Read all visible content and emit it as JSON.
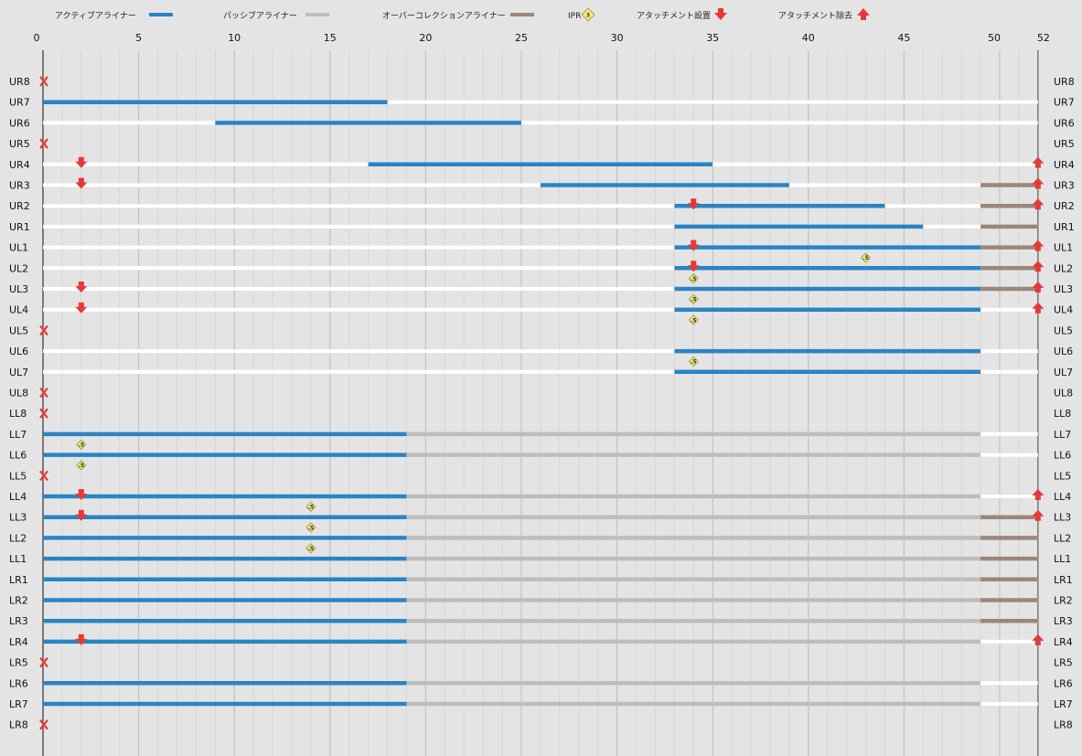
{
  "chart_data": {
    "type": "timeline",
    "x_axis": {
      "ticks": [
        0,
        5,
        10,
        15,
        20,
        25,
        30,
        35,
        40,
        45,
        50,
        52
      ],
      "max": 52
    },
    "legend": {
      "active": "アクティブアライナー",
      "passive": "パッシブアライナー",
      "overcorrection": "オーバーコレクションアライナー",
      "ipr": "IPR",
      "ipr_badge": "3",
      "attach_place": "アタッチメント設置",
      "attach_remove": "アタッチメント除去"
    },
    "colors": {
      "active": "#2a84c4",
      "passive": "#bdbdbd",
      "overcorrection": "#9a867b",
      "track": "#ffffff",
      "marker": "#e43a36",
      "ipr_fill": "#f1e97a",
      "background": "#e4e4e4"
    },
    "teeth": [
      {
        "name": "UR8",
        "missing": true
      },
      {
        "name": "UR7",
        "segments": [
          {
            "type": "active",
            "start": 0,
            "end": 18
          }
        ]
      },
      {
        "name": "UR6",
        "segments": [
          {
            "type": "active",
            "start": 9,
            "end": 25
          }
        ]
      },
      {
        "name": "UR5",
        "missing": true
      },
      {
        "name": "UR4",
        "segments": [
          {
            "type": "active",
            "start": 17,
            "end": 35
          }
        ],
        "attach_place": 2,
        "attach_remove": 52
      },
      {
        "name": "UR3",
        "segments": [
          {
            "type": "active",
            "start": 26,
            "end": 39
          },
          {
            "type": "overcorrection",
            "start": 49,
            "end": 52
          }
        ],
        "attach_place": 2,
        "attach_remove": 52
      },
      {
        "name": "UR2",
        "segments": [
          {
            "type": "active",
            "start": 33,
            "end": 44
          },
          {
            "type": "overcorrection",
            "start": 49,
            "end": 52
          }
        ],
        "attach_place": 34,
        "attach_remove": 52
      },
      {
        "name": "UR1",
        "segments": [
          {
            "type": "active",
            "start": 33,
            "end": 46
          },
          {
            "type": "overcorrection",
            "start": 49,
            "end": 52
          }
        ]
      },
      {
        "name": "UL1",
        "segments": [
          {
            "type": "active",
            "start": 33,
            "end": 49
          },
          {
            "type": "overcorrection",
            "start": 49,
            "end": 52
          }
        ],
        "attach_place": 34,
        "attach_remove": 52,
        "ipr_after": [
          {
            "x": 43,
            "label": ".5"
          }
        ]
      },
      {
        "name": "UL2",
        "segments": [
          {
            "type": "active",
            "start": 33,
            "end": 49
          },
          {
            "type": "overcorrection",
            "start": 49,
            "end": 52
          }
        ],
        "attach_place": 34,
        "attach_remove": 52,
        "ipr_after": [
          {
            "x": 34,
            "label": ".5"
          }
        ]
      },
      {
        "name": "UL3",
        "segments": [
          {
            "type": "active",
            "start": 33,
            "end": 49
          },
          {
            "type": "overcorrection",
            "start": 49,
            "end": 52
          }
        ],
        "attach_place": 2,
        "attach_remove": 52,
        "ipr_after": [
          {
            "x": 34,
            "label": ".5"
          }
        ]
      },
      {
        "name": "UL4",
        "segments": [
          {
            "type": "active",
            "start": 33,
            "end": 49
          }
        ],
        "attach_place": 2,
        "attach_remove": 52,
        "ipr_after": [
          {
            "x": 34,
            "label": ".5"
          }
        ]
      },
      {
        "name": "UL5",
        "missing": true
      },
      {
        "name": "UL6",
        "segments": [
          {
            "type": "active",
            "start": 33,
            "end": 49
          }
        ],
        "ipr_after": [
          {
            "x": 34,
            "label": ".5"
          }
        ]
      },
      {
        "name": "UL7",
        "segments": [
          {
            "type": "active",
            "start": 33,
            "end": 49
          }
        ]
      },
      {
        "name": "UL8",
        "missing": true
      },
      {
        "name": "LL8",
        "missing": true
      },
      {
        "name": "LL7",
        "segments": [
          {
            "type": "active",
            "start": 0,
            "end": 19
          },
          {
            "type": "passive",
            "start": 19,
            "end": 49
          }
        ],
        "ipr_after": [
          {
            "x": 2,
            "label": ".5"
          }
        ]
      },
      {
        "name": "LL6",
        "segments": [
          {
            "type": "active",
            "start": 0,
            "end": 19
          },
          {
            "type": "passive",
            "start": 19,
            "end": 49
          }
        ],
        "ipr_after": [
          {
            "x": 2,
            "label": ".5"
          }
        ]
      },
      {
        "name": "LL5",
        "missing": true
      },
      {
        "name": "LL4",
        "segments": [
          {
            "type": "active",
            "start": 0,
            "end": 19
          },
          {
            "type": "passive",
            "start": 19,
            "end": 49
          }
        ],
        "attach_place": 2,
        "attach_remove": 52,
        "ipr_after": [
          {
            "x": 14,
            "label": ".5"
          }
        ]
      },
      {
        "name": "LL3",
        "segments": [
          {
            "type": "active",
            "start": 0,
            "end": 19
          },
          {
            "type": "passive",
            "start": 19,
            "end": 49
          },
          {
            "type": "overcorrection",
            "start": 49,
            "end": 52
          }
        ],
        "attach_place": 2,
        "attach_remove": 52,
        "ipr_after": [
          {
            "x": 14,
            "label": ".5"
          }
        ]
      },
      {
        "name": "LL2",
        "segments": [
          {
            "type": "active",
            "start": 0,
            "end": 19
          },
          {
            "type": "passive",
            "start": 19,
            "end": 49
          },
          {
            "type": "overcorrection",
            "start": 49,
            "end": 52
          }
        ],
        "ipr_after": [
          {
            "x": 14,
            "label": ".5"
          }
        ]
      },
      {
        "name": "LL1",
        "segments": [
          {
            "type": "active",
            "start": 0,
            "end": 19
          },
          {
            "type": "passive",
            "start": 19,
            "end": 49
          },
          {
            "type": "overcorrection",
            "start": 49,
            "end": 52
          }
        ]
      },
      {
        "name": "LR1",
        "segments": [
          {
            "type": "active",
            "start": 0,
            "end": 19
          },
          {
            "type": "passive",
            "start": 19,
            "end": 49
          },
          {
            "type": "overcorrection",
            "start": 49,
            "end": 52
          }
        ]
      },
      {
        "name": "LR2",
        "segments": [
          {
            "type": "active",
            "start": 0,
            "end": 19
          },
          {
            "type": "passive",
            "start": 19,
            "end": 49
          },
          {
            "type": "overcorrection",
            "start": 49,
            "end": 52
          }
        ]
      },
      {
        "name": "LR3",
        "segments": [
          {
            "type": "active",
            "start": 0,
            "end": 19
          },
          {
            "type": "passive",
            "start": 19,
            "end": 49
          },
          {
            "type": "overcorrection",
            "start": 49,
            "end": 52
          }
        ]
      },
      {
        "name": "LR4",
        "segments": [
          {
            "type": "active",
            "start": 0,
            "end": 19
          },
          {
            "type": "passive",
            "start": 19,
            "end": 49
          }
        ],
        "attach_place": 2,
        "attach_remove": 52
      },
      {
        "name": "LR5",
        "missing": true
      },
      {
        "name": "LR6",
        "segments": [
          {
            "type": "active",
            "start": 0,
            "end": 19
          },
          {
            "type": "passive",
            "start": 19,
            "end": 49
          }
        ]
      },
      {
        "name": "LR7",
        "segments": [
          {
            "type": "active",
            "start": 0,
            "end": 19
          },
          {
            "type": "passive",
            "start": 19,
            "end": 49
          }
        ]
      },
      {
        "name": "LR8",
        "missing": true
      }
    ]
  }
}
